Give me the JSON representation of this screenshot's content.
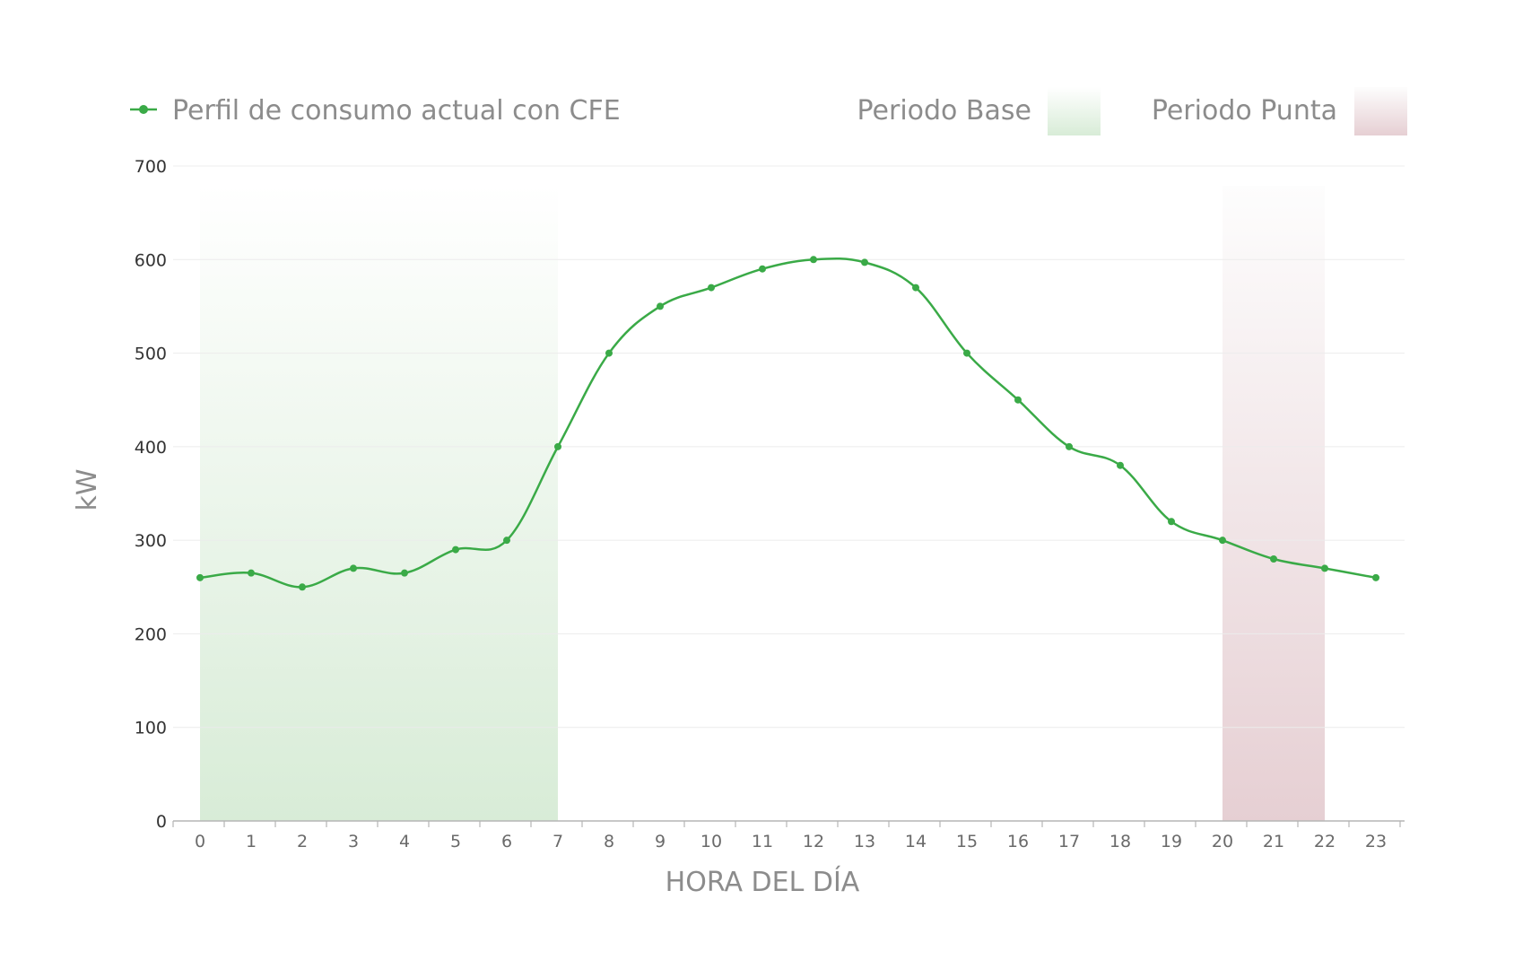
{
  "chart_data": {
    "type": "line",
    "x": [
      0,
      1,
      2,
      3,
      4,
      5,
      6,
      7,
      8,
      9,
      10,
      11,
      12,
      13,
      14,
      15,
      16,
      17,
      18,
      19,
      20,
      21,
      22,
      23
    ],
    "series": [
      {
        "name": "Perfil de consumo actual con CFE",
        "values": [
          260,
          265,
          250,
          270,
          265,
          290,
          300,
          400,
          500,
          550,
          570,
          590,
          600,
          597,
          570,
          500,
          450,
          400,
          380,
          320,
          300,
          280,
          270,
          260
        ],
        "color": "#3aaa47"
      }
    ],
    "bands": [
      {
        "label": "Periodo Base",
        "x_start": 0,
        "x_end": 7,
        "color": "#d8ecd7"
      },
      {
        "label": "Periodo Punta",
        "x_start": 20,
        "x_end": 22,
        "color": "#e6cfd3"
      }
    ],
    "xlabel": "HORA DEL DÍA",
    "ylabel": "kW",
    "ylim": [
      0,
      700
    ],
    "y_ticks": [
      0,
      100,
      200,
      300,
      400,
      500,
      600,
      700
    ],
    "x_ticks": [
      "0",
      "1",
      "2",
      "3",
      "4",
      "5",
      "6",
      "7",
      "8",
      "9",
      "10",
      "11",
      "12",
      "13",
      "14",
      "15",
      "16",
      "17",
      "18",
      "19",
      "20",
      "21",
      "22",
      "23"
    ],
    "grid": true,
    "legend_position": "top"
  }
}
